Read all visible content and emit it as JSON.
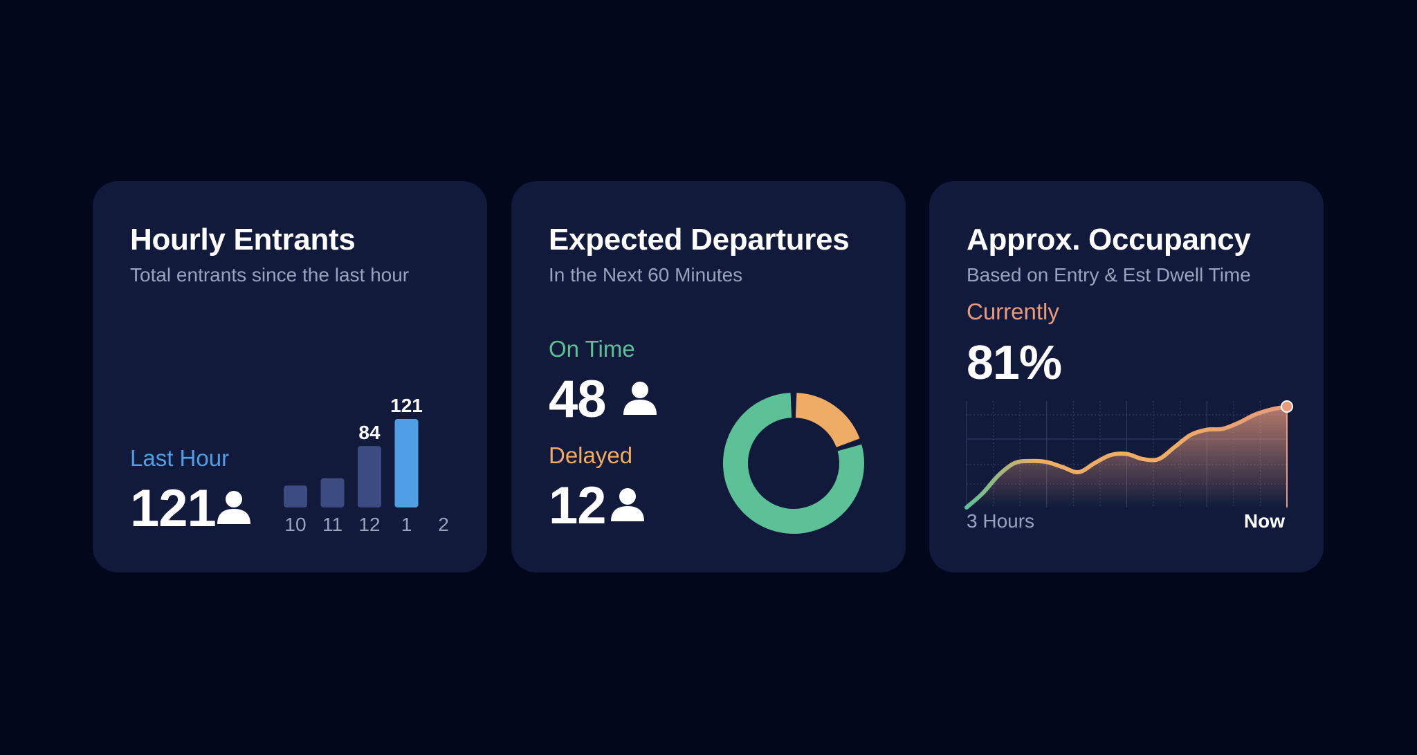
{
  "colors": {
    "background": "#01081b",
    "card": "#111a3b",
    "blue": "#4f9ee6",
    "bar_muted": "#3c4b82",
    "green": "#5cc197",
    "orange": "#eeac64",
    "salmon": "#e99a7c"
  },
  "cards": {
    "entrants": {
      "title": "Hourly Entrants",
      "subtitle": "Total entrants since the last hour",
      "stat_label": "Last Hour",
      "stat_value": "121",
      "icon": "person-icon"
    },
    "departures": {
      "title": "Expected Departures",
      "subtitle": "In the Next 60 Minutes",
      "on_time_label": "On Time",
      "on_time_value": "48",
      "delayed_label": "Delayed",
      "delayed_value": "12",
      "icon": "person-icon"
    },
    "occupancy": {
      "title": "Approx. Occupancy",
      "subtitle": "Based on Entry & Est Dwell Time",
      "current_label": "Currently",
      "current_value": "81%",
      "x_start_label": "3 Hours",
      "x_end_label": "Now"
    }
  },
  "chart_data": [
    {
      "type": "bar",
      "categories": [
        "10",
        "11",
        "12",
        "1",
        "2"
      ],
      "values": [
        30,
        40,
        84,
        121,
        null
      ],
      "data_labels": [
        "",
        "",
        "84",
        "121",
        ""
      ],
      "highlight_index": 3,
      "ylim": [
        0,
        121
      ]
    },
    {
      "type": "pie",
      "donut": true,
      "slices": [
        {
          "label": "On Time",
          "value": 48,
          "color": "#5cc197"
        },
        {
          "label": "Delayed",
          "value": 12,
          "color": "#eeac64"
        }
      ]
    },
    {
      "type": "area",
      "x": [
        0,
        0.15,
        0.3,
        0.45,
        0.6,
        0.75,
        0.9,
        1.05,
        1.2,
        1.35,
        1.5,
        1.65,
        1.8,
        1.95,
        2.1,
        2.25,
        2.4,
        2.55,
        2.7,
        2.85,
        3.0
      ],
      "values": [
        0,
        14,
        32,
        44,
        46,
        45,
        40,
        35,
        44,
        52,
        53,
        48,
        48,
        60,
        72,
        77,
        78,
        84,
        92,
        97,
        100
      ],
      "xlabel_start": "3 Hours",
      "xlabel_end": "Now",
      "ylim": [
        0,
        100
      ],
      "grid": true,
      "current_marker": true
    }
  ]
}
